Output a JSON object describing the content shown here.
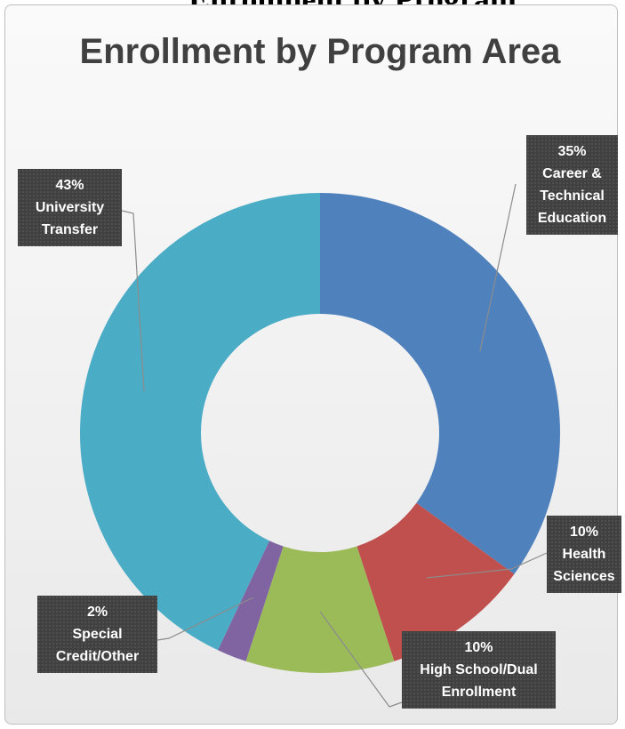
{
  "page_header": "Enrollment by Program",
  "chart_data": {
    "type": "donut",
    "title": "Enrollment by Program Area",
    "categories": [
      "Career & Technical Education",
      "Health Sciences",
      "High School/Dual Enrollment",
      "Special Credit/Other",
      "University Transfer"
    ],
    "values": [
      35,
      10,
      10,
      2,
      43
    ],
    "value_labels": [
      "35%",
      "10%",
      "10%",
      "2%",
      "43%"
    ],
    "colors": [
      "#4f81bd",
      "#c0504d",
      "#9bbb59",
      "#8064a2",
      "#4bacc6"
    ]
  }
}
